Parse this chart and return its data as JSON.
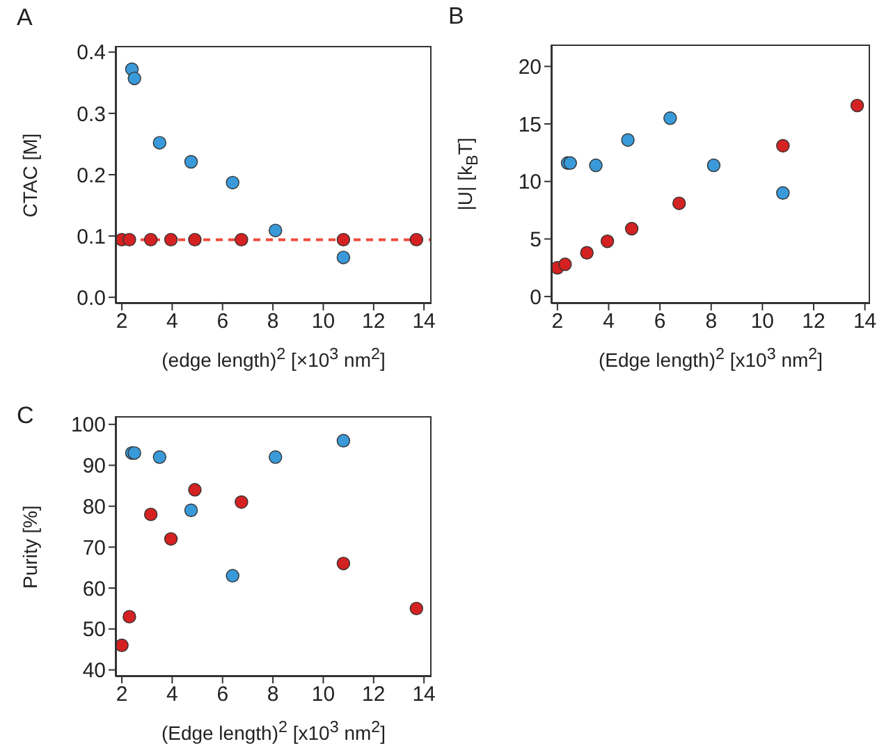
{
  "chart_data": [
    {
      "type": "scatter",
      "title": "A",
      "xlabel": "(edge length)$^{2}$ [×10$^{3}$ nm$^{2}$]",
      "ylabel": "CTAC [M]",
      "xlim": [
        1.75,
        14.3
      ],
      "ylim": [
        -0.01,
        0.41
      ],
      "xticks": [
        2,
        4,
        6,
        8,
        10,
        12,
        14
      ],
      "yticks": [
        {
          "value": 0,
          "label": "0.0"
        },
        0.1,
        0.2,
        0.3,
        0.4
      ],
      "marker": "circle",
      "grid": false,
      "ref_lines": [
        {
          "axis": "y",
          "value": 0.094,
          "color": "#ee4a3c",
          "line_style": "dashed"
        }
      ],
      "series": [
        {
          "color": "#3a9ad9",
          "x": [
            2.4,
            2.5,
            3.5,
            4.75,
            6.4,
            8.1,
            10.8
          ],
          "values": [
            0.372,
            0.357,
            0.252,
            0.221,
            0.187,
            0.109,
            0.065
          ]
        },
        {
          "color": "#d42222",
          "x": [
            2.0,
            2.3,
            3.15,
            3.95,
            4.9,
            6.75,
            10.8,
            13.7
          ],
          "values": [
            0.094,
            0.094,
            0.094,
            0.094,
            0.094,
            0.094,
            0.094,
            0.094
          ]
        }
      ]
    },
    {
      "type": "scatter",
      "title": "B",
      "xlabel": "(Edge length)$^{2}$ [x10$^{3}$  nm$^{2}$]",
      "ylabel": "|U| [k$_{B}$T]",
      "xlim": [
        1.76,
        14.2
      ],
      "ylim": [
        -0.6,
        21.9
      ],
      "xticks": [
        2,
        4,
        6,
        8,
        10,
        12,
        14
      ],
      "yticks": [
        0,
        5,
        10,
        15,
        20
      ],
      "marker": "circle",
      "grid": false,
      "series": [
        {
          "color": "#3a9ad9",
          "x": [
            2.4,
            2.5,
            3.5,
            4.75,
            6.4,
            8.1,
            10.8
          ],
          "values": [
            11.6,
            11.6,
            11.4,
            13.6,
            15.5,
            11.4,
            9.0
          ]
        },
        {
          "color": "#d42222",
          "x": [
            2.0,
            2.3,
            3.15,
            3.95,
            4.9,
            6.75,
            10.8,
            13.7
          ],
          "values": [
            2.5,
            2.8,
            3.8,
            4.8,
            5.9,
            8.1,
            13.1,
            16.6
          ]
        }
      ]
    },
    {
      "type": "scatter",
      "title": "C",
      "xlabel": "(Edge length)$^{2}$ [x10$^{3}$ nm$^{2}$]",
      "ylabel": "Purity [%]",
      "xlim": [
        1.75,
        14.3
      ],
      "ylim": [
        38.4,
        102
      ],
      "xticks": [
        2,
        4,
        6,
        8,
        10,
        12,
        14
      ],
      "yticks": [
        40,
        50,
        60,
        70,
        80,
        90,
        100
      ],
      "marker": "circle",
      "grid": false,
      "series": [
        {
          "color": "#3a9ad9",
          "x": [
            2.4,
            2.5,
            3.5,
            4.75,
            6.4,
            8.1,
            10.8
          ],
          "values": [
            93,
            93,
            92,
            79,
            63,
            92,
            96
          ]
        },
        {
          "color": "#d42222",
          "x": [
            2.0,
            2.3,
            3.15,
            3.95,
            4.9,
            6.75,
            10.8,
            13.7
          ],
          "values": [
            46,
            53,
            78,
            72,
            84,
            81,
            66,
            55
          ]
        }
      ]
    }
  ]
}
